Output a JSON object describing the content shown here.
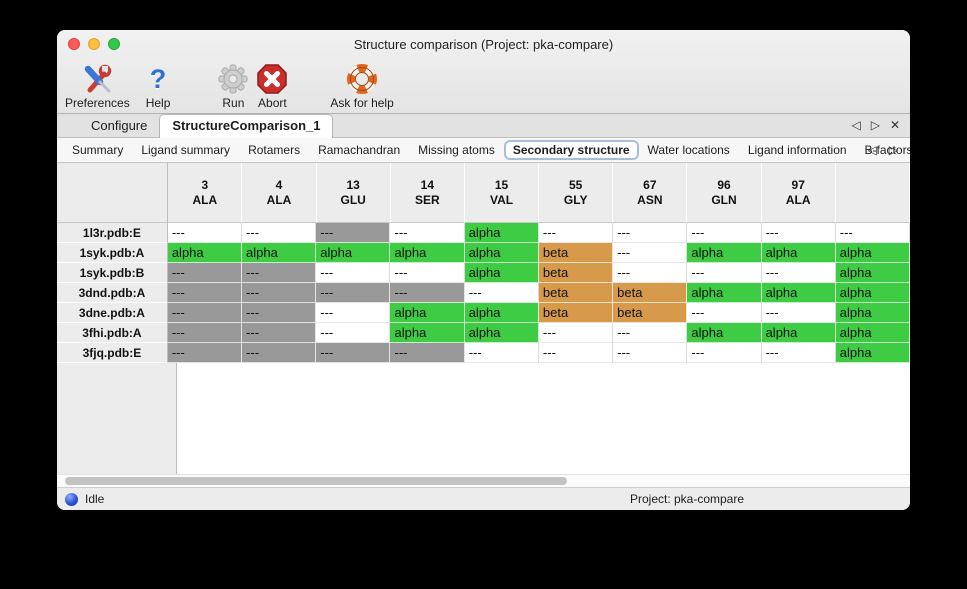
{
  "window": {
    "title": "Structure comparison (Project: pka-compare)"
  },
  "toolbar": {
    "buttons": [
      {
        "label": "Preferences",
        "icon": "tools-icon"
      },
      {
        "label": "Help",
        "icon": "question-icon"
      },
      {
        "label": "Run",
        "icon": "gear-icon"
      },
      {
        "label": "Abort",
        "icon": "stop-icon"
      },
      {
        "label": "Ask for help",
        "icon": "lifebuoy-icon"
      }
    ]
  },
  "icons": {
    "help_glyph": "?",
    "nav_prev": "◁",
    "nav_next": "▷",
    "close": "✕"
  },
  "tabs": {
    "primary": [
      {
        "label": "Configure"
      },
      {
        "label": "StructureComparison_1"
      }
    ],
    "primary_selected": "StructureComparison_1",
    "secondary": [
      "Summary",
      "Ligand summary",
      "Rotamers",
      "Ramachandran",
      "Missing atoms",
      "Secondary structure",
      "Water locations",
      "Ligand information",
      "B-factors"
    ],
    "secondary_selected": "Secondary structure"
  },
  "table": {
    "columns": [
      {
        "num": "3",
        "res": "ALA"
      },
      {
        "num": "4",
        "res": "ALA"
      },
      {
        "num": "13",
        "res": "GLU"
      },
      {
        "num": "14",
        "res": "SER"
      },
      {
        "num": "15",
        "res": "VAL"
      },
      {
        "num": "55",
        "res": "GLY"
      },
      {
        "num": "67",
        "res": "ASN"
      },
      {
        "num": "96",
        "res": "GLN"
      },
      {
        "num": "97",
        "res": "ALA"
      },
      {
        "num": "",
        "res": ""
      }
    ],
    "rows": [
      {
        "label": "1l3r.pdb:E",
        "cells": [
          {
            "v": "---",
            "bg": "white"
          },
          {
            "v": "---",
            "bg": "white"
          },
          {
            "v": "---",
            "bg": "gray"
          },
          {
            "v": "---",
            "bg": "white"
          },
          {
            "v": "alpha",
            "bg": "green"
          },
          {
            "v": "---",
            "bg": "white"
          },
          {
            "v": "---",
            "bg": "white"
          },
          {
            "v": "---",
            "bg": "white"
          },
          {
            "v": "---",
            "bg": "white"
          },
          {
            "v": "---",
            "bg": "white"
          }
        ]
      },
      {
        "label": "1syk.pdb:A",
        "cells": [
          {
            "v": "alpha",
            "bg": "green"
          },
          {
            "v": "alpha",
            "bg": "green"
          },
          {
            "v": "alpha",
            "bg": "green"
          },
          {
            "v": "alpha",
            "bg": "green"
          },
          {
            "v": "alpha",
            "bg": "green"
          },
          {
            "v": "beta",
            "bg": "orange"
          },
          {
            "v": "---",
            "bg": "white"
          },
          {
            "v": "alpha",
            "bg": "green"
          },
          {
            "v": "alpha",
            "bg": "green"
          },
          {
            "v": "alpha",
            "bg": "green"
          }
        ]
      },
      {
        "label": "1syk.pdb:B",
        "cells": [
          {
            "v": "---",
            "bg": "gray"
          },
          {
            "v": "---",
            "bg": "gray"
          },
          {
            "v": "---",
            "bg": "white"
          },
          {
            "v": "---",
            "bg": "white"
          },
          {
            "v": "alpha",
            "bg": "green"
          },
          {
            "v": "beta",
            "bg": "orange"
          },
          {
            "v": "---",
            "bg": "white"
          },
          {
            "v": "---",
            "bg": "white"
          },
          {
            "v": "---",
            "bg": "white"
          },
          {
            "v": "alpha",
            "bg": "green"
          }
        ]
      },
      {
        "label": "3dnd.pdb:A",
        "cells": [
          {
            "v": "---",
            "bg": "gray"
          },
          {
            "v": "---",
            "bg": "gray"
          },
          {
            "v": "---",
            "bg": "gray"
          },
          {
            "v": "---",
            "bg": "gray"
          },
          {
            "v": "---",
            "bg": "white"
          },
          {
            "v": "beta",
            "bg": "orange"
          },
          {
            "v": "beta",
            "bg": "orange"
          },
          {
            "v": "alpha",
            "bg": "green"
          },
          {
            "v": "alpha",
            "bg": "green"
          },
          {
            "v": "alpha",
            "bg": "green"
          }
        ]
      },
      {
        "label": "3dne.pdb:A",
        "cells": [
          {
            "v": "---",
            "bg": "gray"
          },
          {
            "v": "---",
            "bg": "gray"
          },
          {
            "v": "---",
            "bg": "white"
          },
          {
            "v": "alpha",
            "bg": "green"
          },
          {
            "v": "alpha",
            "bg": "green"
          },
          {
            "v": "beta",
            "bg": "orange"
          },
          {
            "v": "beta",
            "bg": "orange"
          },
          {
            "v": "---",
            "bg": "white"
          },
          {
            "v": "---",
            "bg": "white"
          },
          {
            "v": "alpha",
            "bg": "green"
          }
        ]
      },
      {
        "label": "3fhi.pdb:A",
        "cells": [
          {
            "v": "---",
            "bg": "gray"
          },
          {
            "v": "---",
            "bg": "gray"
          },
          {
            "v": "---",
            "bg": "white"
          },
          {
            "v": "alpha",
            "bg": "green"
          },
          {
            "v": "alpha",
            "bg": "green"
          },
          {
            "v": "---",
            "bg": "white"
          },
          {
            "v": "---",
            "bg": "white"
          },
          {
            "v": "alpha",
            "bg": "green"
          },
          {
            "v": "alpha",
            "bg": "green"
          },
          {
            "v": "alpha",
            "bg": "green"
          }
        ]
      },
      {
        "label": "3fjq.pdb:E",
        "cells": [
          {
            "v": "---",
            "bg": "gray"
          },
          {
            "v": "---",
            "bg": "gray"
          },
          {
            "v": "---",
            "bg": "gray"
          },
          {
            "v": "---",
            "bg": "gray"
          },
          {
            "v": "---",
            "bg": "white"
          },
          {
            "v": "---",
            "bg": "white"
          },
          {
            "v": "---",
            "bg": "white"
          },
          {
            "v": "---",
            "bg": "white"
          },
          {
            "v": "---",
            "bg": "white"
          },
          {
            "v": "alpha",
            "bg": "green"
          }
        ]
      }
    ],
    "cell_colors": {
      "green": "#3ecc44",
      "orange": "#d79a4b",
      "gray": "#999999",
      "white": "#ffffff"
    }
  },
  "status_bar": {
    "status": "Idle",
    "project": "Project: pka-compare"
  }
}
